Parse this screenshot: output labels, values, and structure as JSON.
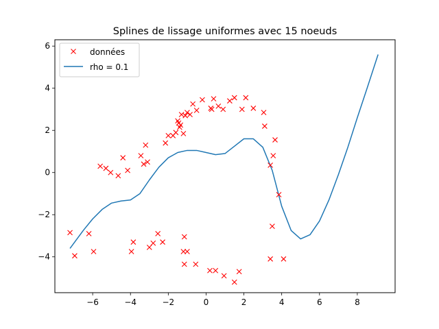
{
  "chart_data": {
    "type": "scatter",
    "title": "Splines de lissage uniformes avec 15 noeuds",
    "xlabel": "",
    "ylabel": "",
    "xlim": [
      -8.0,
      10.0
    ],
    "ylim": [
      -5.7,
      6.3
    ],
    "xticks": [
      -6,
      -4,
      -2,
      0,
      2,
      4,
      6,
      8
    ],
    "xtick_labels": [
      "−6",
      "−4",
      "−2",
      "0",
      "2",
      "4",
      "6",
      "8"
    ],
    "yticks": [
      -4,
      -2,
      0,
      2,
      4,
      6
    ],
    "ytick_labels": [
      "−4",
      "−2",
      "0",
      "2",
      "4",
      "6"
    ],
    "grid": false,
    "legend_placement": "top-left",
    "series": [
      {
        "name": "données",
        "kind": "scatter",
        "marker": "x",
        "color": "#ff0000",
        "x": [
          -7.2,
          -6.95,
          -6.2,
          -5.95,
          -5.6,
          -5.3,
          -5.05,
          -4.65,
          -4.4,
          -4.15,
          -3.95,
          -3.85,
          -3.45,
          -3.3,
          -3.2,
          -3.1,
          -3.0,
          -2.8,
          -2.55,
          -2.3,
          -2.15,
          -2.0,
          -1.75,
          -1.6,
          -1.5,
          -1.45,
          -1.4,
          -1.35,
          -1.3,
          -1.2,
          -1.15,
          -1.1,
          -1.0,
          -0.85,
          -0.7,
          -0.5,
          -0.2,
          0.25,
          0.3,
          0.4,
          0.65,
          0.9,
          1.25,
          1.5,
          1.9,
          2.1,
          2.5,
          3.05,
          3.1,
          3.4,
          3.55,
          3.65,
          3.85,
          4.1,
          0.2,
          0.95,
          1.5,
          1.75,
          3.4,
          3.5,
          -1.15,
          -1.0,
          -1.2,
          -0.55,
          0.5
        ],
        "y": [
          -2.85,
          -3.95,
          -2.9,
          -3.75,
          0.3,
          0.2,
          0.0,
          -0.15,
          0.7,
          0.1,
          -3.75,
          -3.3,
          0.8,
          0.4,
          1.3,
          0.5,
          -3.55,
          -3.35,
          -2.9,
          -3.3,
          1.4,
          1.75,
          1.75,
          1.9,
          2.45,
          2.35,
          2.15,
          2.25,
          2.75,
          1.85,
          -3.05,
          2.7,
          2.85,
          2.75,
          3.25,
          2.95,
          3.45,
          3.05,
          3.0,
          3.5,
          3.15,
          3.0,
          3.4,
          3.55,
          3.0,
          3.55,
          3.05,
          2.85,
          2.2,
          0.35,
          0.8,
          1.55,
          -1.05,
          -4.1,
          -4.65,
          -4.9,
          -5.2,
          -4.7,
          -4.1,
          -2.55,
          -4.35,
          -3.75,
          -3.75,
          -4.35,
          -4.65
        ]
      },
      {
        "name": "rho = 0.1",
        "kind": "line",
        "color": "#1f77b4",
        "x": [
          -7.2,
          -6.5,
          -6.0,
          -5.5,
          -5.0,
          -4.5,
          -4.0,
          -3.5,
          -3.0,
          -2.5,
          -2.0,
          -1.5,
          -1.0,
          -0.5,
          0.0,
          0.5,
          1.0,
          1.5,
          2.0,
          2.5,
          3.0,
          3.5,
          4.0,
          4.5,
          5.0,
          5.5,
          6.0,
          6.5,
          7.0,
          7.5,
          8.0,
          8.5,
          9.1
        ],
        "y": [
          -3.6,
          -2.75,
          -2.2,
          -1.75,
          -1.45,
          -1.35,
          -1.3,
          -1.0,
          -0.35,
          0.25,
          0.7,
          0.95,
          1.05,
          1.05,
          0.95,
          0.85,
          0.9,
          1.25,
          1.6,
          1.6,
          1.2,
          0.1,
          -1.6,
          -2.75,
          -3.15,
          -2.95,
          -2.3,
          -1.3,
          -0.1,
          1.2,
          2.6,
          3.95,
          5.6
        ]
      }
    ]
  }
}
